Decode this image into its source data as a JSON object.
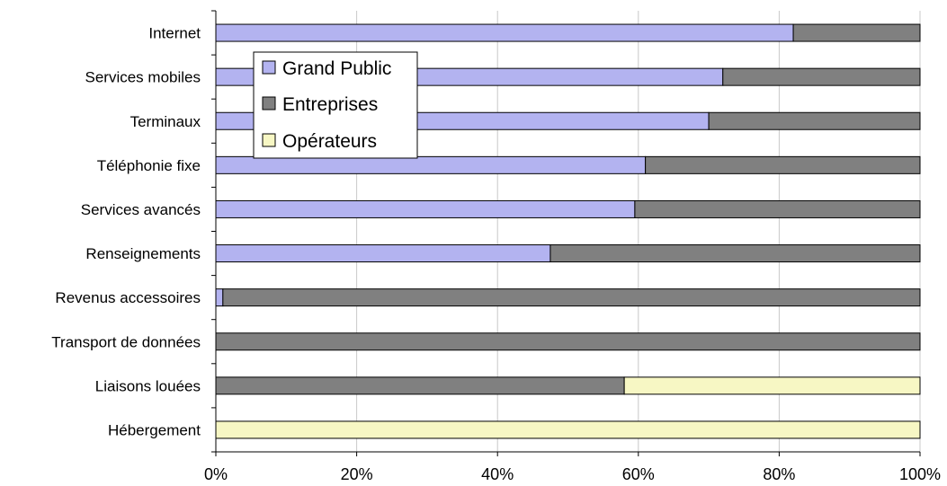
{
  "chart_data": {
    "type": "bar",
    "orientation": "horizontal",
    "stacked": "percent",
    "categories": [
      "Internet",
      "Services mobiles",
      "Terminaux",
      "Téléphonie fixe",
      "Services avancés",
      "Renseignements",
      "Revenus accessoires",
      "Transport de données",
      "Liaisons louées",
      "Hébergement"
    ],
    "series": [
      {
        "name": "Grand Public",
        "color": "#b3b3f0",
        "values": [
          82,
          72,
          70,
          61,
          59.5,
          47.5,
          1,
          0,
          0,
          0
        ]
      },
      {
        "name": "Entreprises",
        "color": "#808080",
        "values": [
          18,
          28,
          30,
          39,
          40.5,
          52.5,
          99,
          100,
          58,
          0
        ]
      },
      {
        "name": "Opérateurs",
        "color": "#f7f7c4",
        "values": [
          0,
          0,
          0,
          0,
          0,
          0,
          0,
          0,
          42,
          100
        ]
      }
    ],
    "xticks": [
      "0%",
      "20%",
      "40%",
      "60%",
      "80%",
      "100%"
    ],
    "xlim": [
      0,
      100
    ],
    "grid": "vertical",
    "legend": "top-left"
  }
}
